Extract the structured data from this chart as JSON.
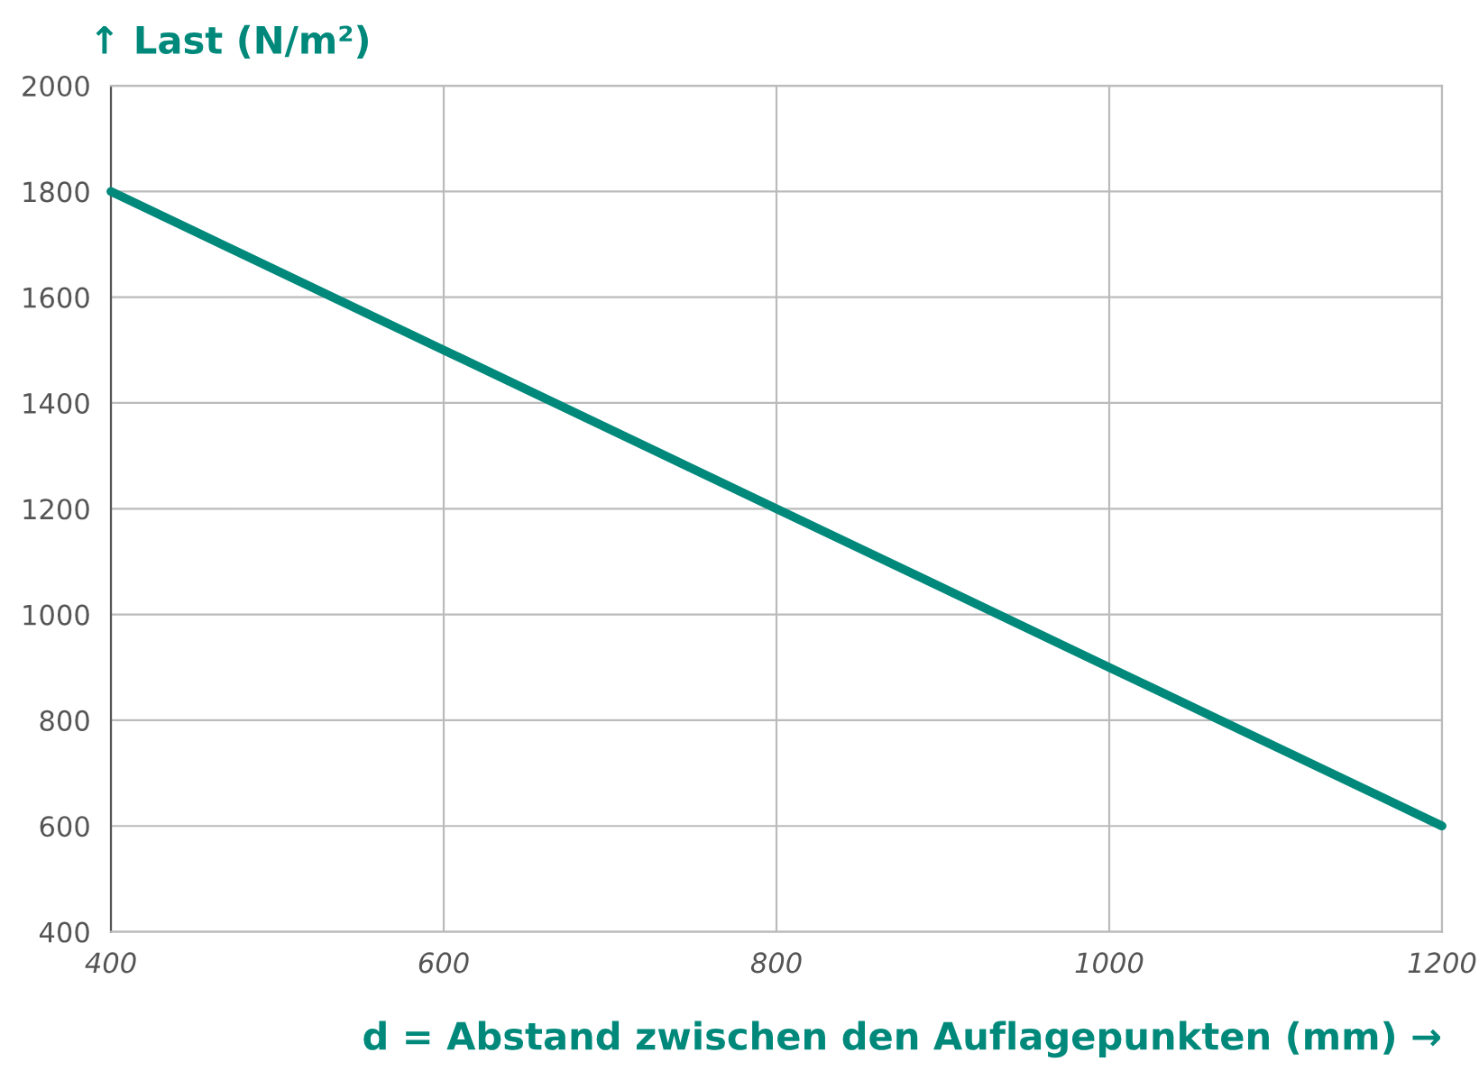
{
  "chart_data": {
    "type": "line",
    "title": "↑ Last (N/m²)",
    "xlabel": "d = Abstand zwischen den Auflagepunkten (mm) →",
    "x": [
      400,
      600,
      800,
      1000,
      1200
    ],
    "series": [
      {
        "color": "#00897b",
        "values": [
          1800,
          1500,
          1200,
          900,
          600
        ]
      }
    ],
    "xlim": [
      400,
      1200
    ],
    "xticks": [
      400,
      600,
      800,
      1000,
      1200
    ],
    "ylim": [
      400,
      2000
    ],
    "yticks": [
      400,
      600,
      800,
      1000,
      1200,
      1400,
      1600,
      1800,
      2000
    ],
    "grid": true,
    "marker": "none",
    "line_style": "solid"
  }
}
